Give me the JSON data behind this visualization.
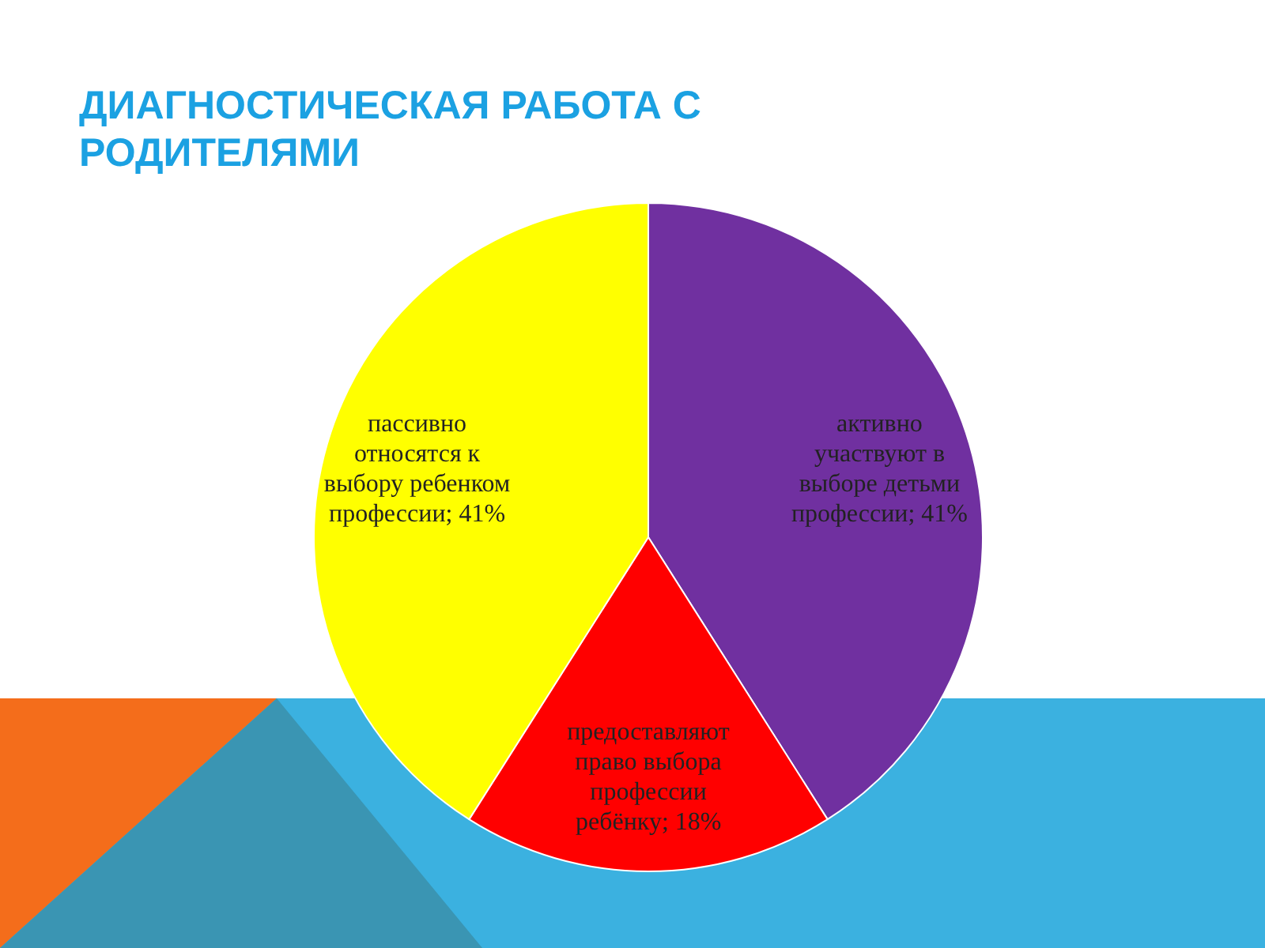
{
  "chart_data": {
    "type": "pie",
    "title": "ДИАГНОСТИЧЕСКАЯ РАБОТА С РОДИТЕЛЯМИ",
    "categories": [
      "активно участвуют в выборе детьми профессии",
      "предоставляют право выбора профессии ребёнку",
      "пассивно относятся к выбору ребенком профессии"
    ],
    "values": [
      41,
      18,
      41
    ],
    "value_labels": [
      "; 41%",
      "; 18%",
      "; 41%"
    ],
    "colors": [
      "#7030a0",
      "#ff0000",
      "#ffff00"
    ]
  }
}
